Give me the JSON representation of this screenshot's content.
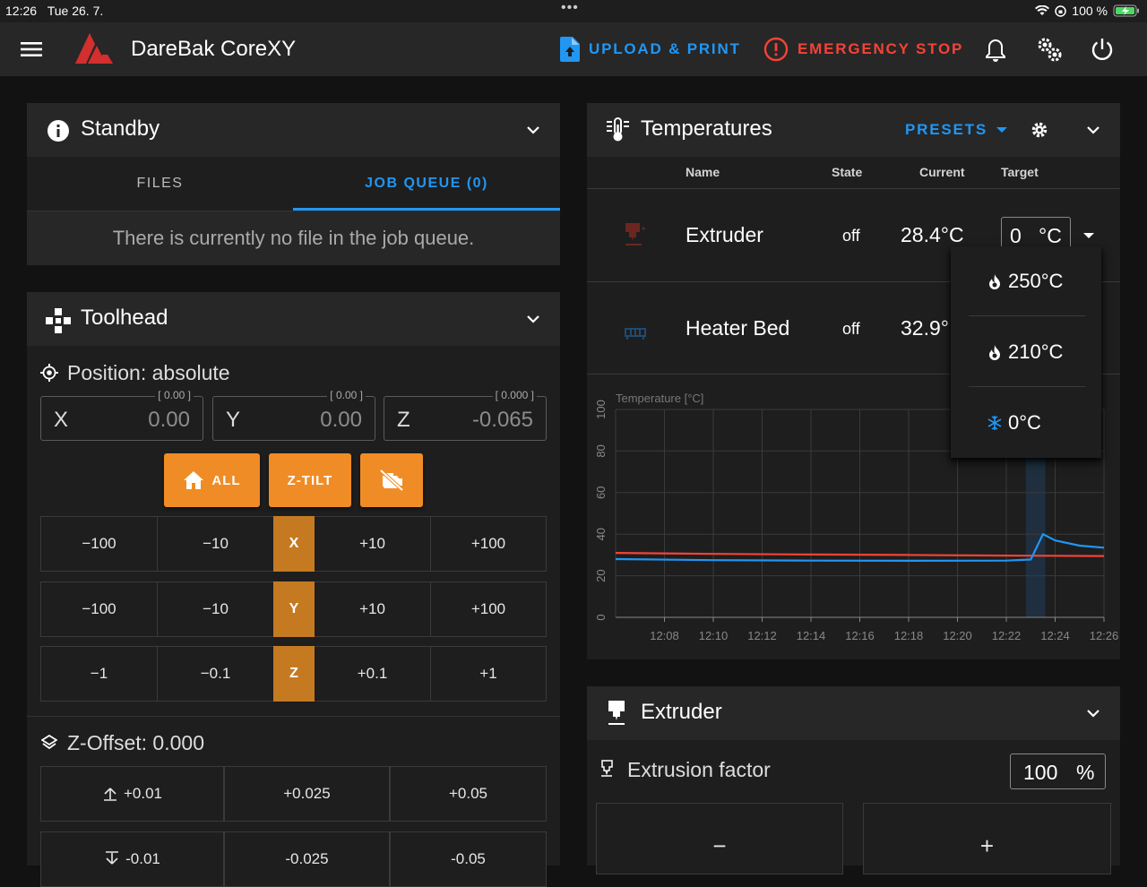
{
  "status_bar": {
    "time": "12:26",
    "date": "Tue 26. 7.",
    "battery": "100 %"
  },
  "app_bar": {
    "title": "DareBak CoreXY",
    "upload_label": "UPLOAD & PRINT",
    "emergency_label": "EMERGENCY STOP",
    "colors": {
      "accent": "#2196f3",
      "danger": "#f44336",
      "logo": "#d32f2f"
    }
  },
  "status_card": {
    "title": "Standby",
    "tabs": [
      {
        "label": "FILES"
      },
      {
        "label": "JOB QUEUE (0)"
      }
    ],
    "empty_text": "There is currently no file in the job queue."
  },
  "toolhead": {
    "title": "Toolhead",
    "position_label": "Position: absolute",
    "fields": [
      {
        "label": "X",
        "value": "0.00",
        "hint": "[ 0.00 ]"
      },
      {
        "label": "Y",
        "value": "0.00",
        "hint": "[ 0.00 ]"
      },
      {
        "label": "Z",
        "value": "-0.065",
        "hint": "[ 0.000 ]"
      }
    ],
    "buttons": {
      "home_all": "ALL",
      "z_tilt": "Z-TILT"
    },
    "rows": [
      {
        "axis": "X",
        "left": [
          "−100",
          "−10"
        ],
        "right": [
          "+10",
          "+100"
        ]
      },
      {
        "axis": "Y",
        "left": [
          "−100",
          "−10"
        ],
        "right": [
          "+10",
          "+100"
        ]
      },
      {
        "axis": "Z",
        "left": [
          "−1",
          "−0.1"
        ],
        "right": [
          "+0.1",
          "+1"
        ]
      }
    ],
    "zoffset_label": "Z-Offset: 0.000",
    "zoffset_up": [
      "+0.01",
      "+0.025",
      "+0.05"
    ],
    "zoffset_down": [
      "-0.01",
      "-0.025",
      "-0.05"
    ]
  },
  "temperatures": {
    "title": "Temperatures",
    "presets_label": "PRESETS",
    "headers": {
      "name": "Name",
      "state": "State",
      "current": "Current",
      "target": "Target"
    },
    "rows": [
      {
        "name": "Extruder",
        "state": "off",
        "current": "28.4°C",
        "target": "0",
        "unit": "°C"
      },
      {
        "name": "Heater Bed",
        "state": "off",
        "current": "32.9°"
      }
    ],
    "preset_menu": [
      "250°C",
      "210°C",
      "0°C"
    ]
  },
  "chart_data": {
    "type": "line",
    "ylabel": "Temperature [°C]",
    "ylim": [
      0,
      100
    ],
    "yticks": [
      0,
      20,
      40,
      60,
      80,
      100
    ],
    "xticks": [
      "12:08",
      "12:10",
      "12:12",
      "12:14",
      "12:16",
      "12:18",
      "12:20",
      "12:22",
      "12:24",
      "12:26"
    ],
    "grid": true,
    "series": [
      {
        "color": "#f44336",
        "x": [
          "12:06",
          "12:10",
          "12:14",
          "12:18",
          "12:22",
          "12:26"
        ],
        "values": [
          31,
          30.5,
          30.2,
          30,
          29.7,
          29.5
        ]
      },
      {
        "color": "#2196f3",
        "x": [
          "12:06",
          "12:10",
          "12:14",
          "12:18",
          "12:22",
          "12:23",
          "12:23.5",
          "12:24",
          "12:25",
          "12:26"
        ],
        "values": [
          28,
          27.5,
          27.3,
          27.2,
          27.3,
          27.8,
          40,
          37,
          34.5,
          33.5
        ]
      }
    ]
  },
  "extruder": {
    "title": "Extruder",
    "extrusion_label": "Extrusion factor",
    "factor_value": "100",
    "factor_unit": "%",
    "minus": "−",
    "plus": "+"
  }
}
